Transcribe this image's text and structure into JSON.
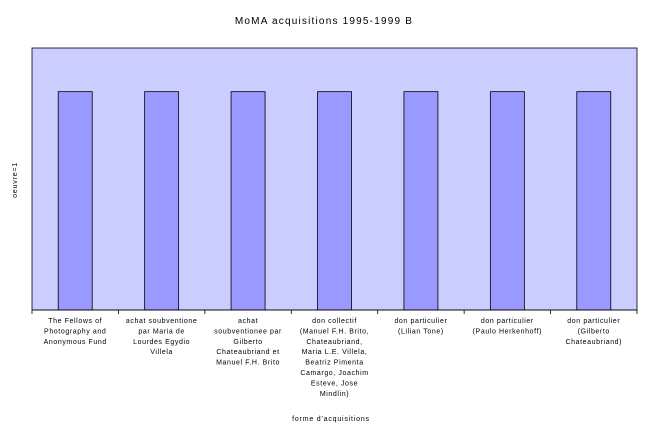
{
  "chart_data": {
    "type": "bar",
    "title": "MoMA acquisitions 1995-1999 B",
    "xlabel": "forme d'acquisitions",
    "ylabel": "oeuvre=1",
    "categories": [
      [
        "The Fellows of",
        "Photography and",
        "Anonymous Fund"
      ],
      [
        "achat soubventione",
        "par Maria de",
        "Lourdes Egydio",
        "Villela"
      ],
      [
        "achat",
        "soubventionee par",
        "Gilberto",
        "Chateaubriand et",
        "Manuel F.H. Brito"
      ],
      [
        "don collectif",
        "(Manuel F.H. Brito,",
        "Chateaubriand,",
        "Maria L.E. Villela,",
        "Beatriz Pimenta",
        "Camargo, Joachim",
        "Esteve, Jose",
        "Mindlin)"
      ],
      [
        "don particulier",
        "(Lilian Tone)"
      ],
      [
        "don particulier",
        "(Paulo Herkenhoff)"
      ],
      [
        "don particulier",
        "(Gilberto",
        "Chateaubriand)"
      ]
    ],
    "values": [
      1,
      1,
      1,
      1,
      1,
      1,
      1
    ],
    "ylim": [
      0,
      1.2
    ],
    "grid": false,
    "legend": "none",
    "colors": {
      "plot_bg": "#cccdff",
      "bar_fill": "#9999ff",
      "bar_stroke": "#000000",
      "axis": "#000000"
    }
  }
}
